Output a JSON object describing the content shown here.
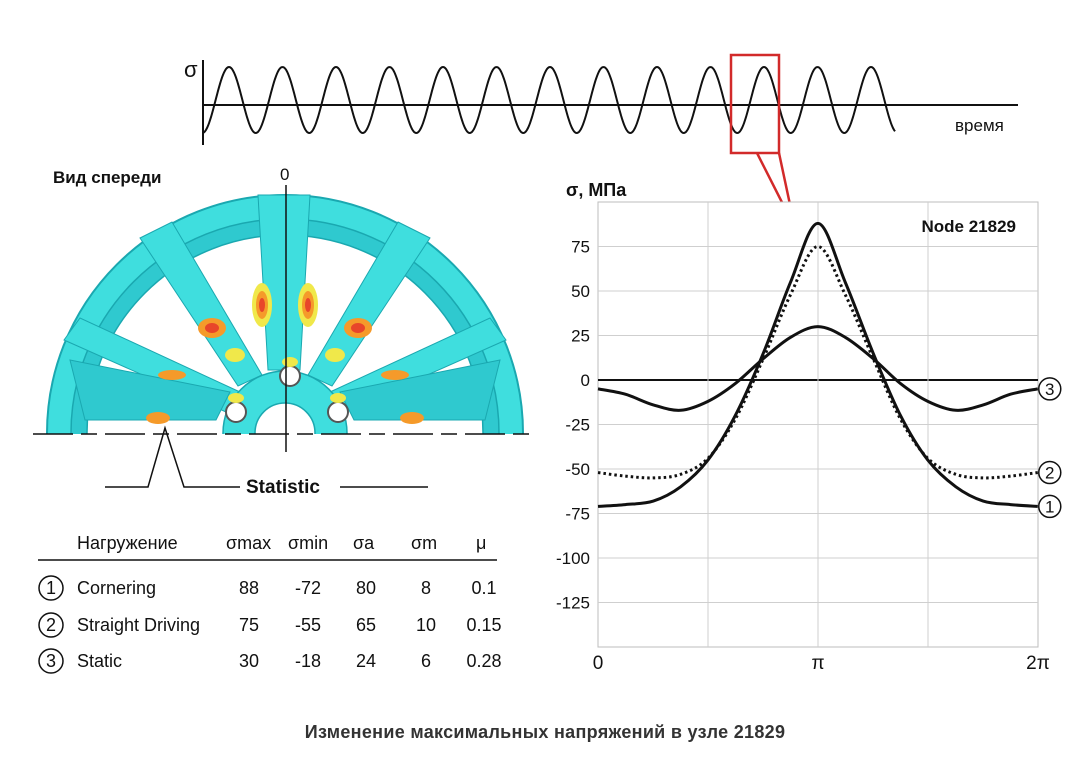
{
  "signal": {
    "y_symbol": "σ",
    "x_label": "время"
  },
  "wheel": {
    "title": "Вид спереди",
    "zero_label": "0",
    "statistic_label": "Statistic"
  },
  "table": {
    "headers": [
      "Нагружение",
      "σmax",
      "σmin",
      "σa",
      "σm",
      "μ"
    ],
    "rows": [
      {
        "num": "1",
        "name": "Cornering",
        "smax": "88",
        "smin": "-72",
        "sa": "80",
        "sm": "8",
        "mu": "0.1"
      },
      {
        "num": "2",
        "name": "Straight Driving",
        "smax": "75",
        "smin": "-55",
        "sa": "65",
        "sm": "10",
        "mu": "0.15"
      },
      {
        "num": "3",
        "name": "Static",
        "smax": "30",
        "smin": "-18",
        "sa": "24",
        "sm": "6",
        "mu": "0.28"
      }
    ]
  },
  "chart_data": {
    "type": "line",
    "ylabel": "σ, МПа",
    "annotation": "Node 21829",
    "x_tick_labels": [
      "0",
      "π",
      "2π"
    ],
    "y_ticks": [
      75,
      50,
      25,
      0,
      -25,
      -50,
      -75,
      -100,
      -125
    ],
    "ylim": [
      -150,
      100
    ],
    "xlim": [
      0,
      6.2832
    ],
    "grid": true,
    "series": [
      {
        "name": "1",
        "style": "solid",
        "x": [
          0,
          0.39,
          0.79,
          1.18,
          1.57,
          1.96,
          2.36,
          2.75,
          3.14,
          3.53,
          3.93,
          4.32,
          4.71,
          5.11,
          5.5,
          5.89,
          6.28
        ],
        "y": [
          -71,
          -70,
          -68,
          -60,
          -45,
          -20,
          15,
          55,
          88,
          55,
          15,
          -20,
          -45,
          -60,
          -68,
          -70,
          -71
        ]
      },
      {
        "name": "2",
        "style": "dotted",
        "x": [
          0,
          0.39,
          0.79,
          1.18,
          1.57,
          1.96,
          2.36,
          2.75,
          3.14,
          3.53,
          3.93,
          4.32,
          4.71,
          5.11,
          5.5,
          5.89,
          6.28
        ],
        "y": [
          -52,
          -54,
          -55,
          -53,
          -44,
          -22,
          12,
          48,
          75,
          48,
          12,
          -22,
          -44,
          -53,
          -55,
          -54,
          -52
        ]
      },
      {
        "name": "3",
        "style": "solid",
        "x": [
          0,
          0.39,
          0.79,
          1.18,
          1.57,
          1.96,
          2.36,
          2.75,
          3.14,
          3.53,
          3.93,
          4.32,
          4.71,
          5.11,
          5.5,
          5.89,
          6.28
        ],
        "y": [
          -5,
          -8,
          -14,
          -17,
          -12,
          -2,
          12,
          24,
          30,
          24,
          12,
          -2,
          -12,
          -17,
          -14,
          -8,
          -5
        ]
      }
    ]
  },
  "caption": "Изменение максимальных напряжений в узле 21829",
  "colors": {
    "wheel_base": "#3fdede",
    "wheel_dark": "#1aa8b0",
    "hot_red": "#e8452a",
    "hot_orange": "#f59a2a",
    "hot_yellow": "#f0e84a",
    "highlight_box": "#d22a2a"
  }
}
